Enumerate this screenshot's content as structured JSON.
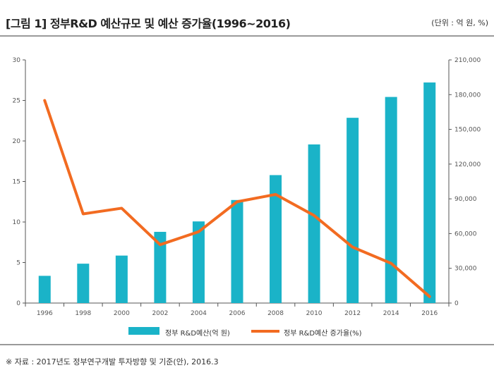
{
  "header": {
    "title": "[그림 1] 정부R&D 예산규모 및 예산 증가율(1996~2016)",
    "unit": "(단위 : 억 원, %)"
  },
  "source": "※ 자료 : 2017년도 정부연구개발 투자방향 및 기준(안), 2016.3",
  "colors": {
    "bar": "#1ab3c8",
    "line": "#f26b21",
    "axis": "#555555"
  },
  "chart_data": {
    "type": "bar",
    "categories": [
      "1996",
      "1998",
      "2000",
      "2002",
      "2004",
      "2006",
      "2008",
      "2010",
      "2012",
      "2014",
      "2016"
    ],
    "series": [
      {
        "name": "정부 R&D예산(억 원)",
        "type": "bar",
        "axis": "right",
        "values": [
          23500,
          34000,
          41000,
          61500,
          70500,
          89000,
          110500,
          137000,
          160000,
          178000,
          190500
        ]
      },
      {
        "name": "정부 R&D예산 증가율(%)",
        "type": "line",
        "axis": "left",
        "values": [
          25.0,
          11.0,
          11.7,
          7.2,
          8.8,
          12.5,
          13.4,
          10.8,
          6.9,
          4.9,
          0.8
        ]
      }
    ],
    "y_left": {
      "range": [
        0,
        30
      ],
      "ticks": [
        "0",
        "5",
        "10",
        "15",
        "20",
        "25",
        "30"
      ]
    },
    "y_right": {
      "range": [
        0,
        210000
      ],
      "ticks": [
        "0",
        "30,000",
        "60,000",
        "90,000",
        "120,000",
        "150,000",
        "180,000",
        "210,000"
      ]
    },
    "legend": {
      "position": "bottom"
    },
    "grid": false
  }
}
